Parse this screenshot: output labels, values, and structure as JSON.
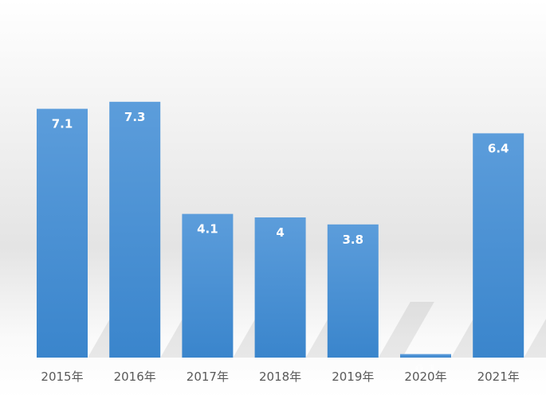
{
  "chart_data": {
    "type": "bar",
    "categories": [
      "2015年",
      "2016年",
      "2017年",
      "2018年",
      "2019年",
      "2020年",
      "2021年"
    ],
    "values": [
      7.1,
      7.3,
      4.1,
      4,
      3.8,
      0.1,
      6.4
    ],
    "color": "#5b9bd5"
  }
}
